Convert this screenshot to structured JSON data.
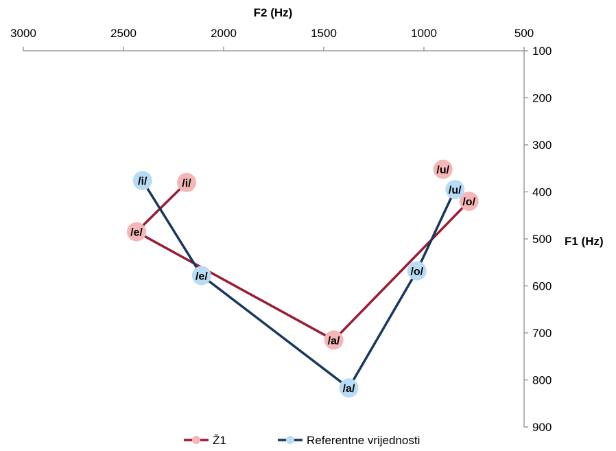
{
  "chart_data": {
    "type": "scatter",
    "title": "",
    "xlabel": "F2 (Hz)",
    "ylabel": "F1 (Hz)",
    "x_axis": {
      "position": "top",
      "reversed": true,
      "min": 500,
      "max": 3000,
      "step": 500
    },
    "y_axis": {
      "position": "right",
      "reversed": true,
      "min": 100,
      "max": 900,
      "step": 100
    },
    "x_tick_labels": [
      "3000",
      "2500",
      "2000",
      "1500",
      "1000",
      "500"
    ],
    "y_tick_labels": [
      "100",
      "200",
      "300",
      "400",
      "500",
      "600",
      "700",
      "800",
      "900"
    ],
    "grid": false,
    "legend_position": "bottom",
    "series": [
      {
        "name": "Ž1",
        "line_color": "#9b1b35",
        "marker_color": "#f4b6b6",
        "points": [
          {
            "label": "/i/",
            "x": 2185,
            "y": 380
          },
          {
            "label": "/e/",
            "x": 2435,
            "y": 485
          },
          {
            "label": "/a/",
            "x": 1450,
            "y": 715
          },
          {
            "label": "/o/",
            "x": 775,
            "y": 420
          }
        ],
        "extra_points": [
          {
            "label": "/u/",
            "x": 905,
            "y": 352
          }
        ]
      },
      {
        "name": "Referentne vrijednosti",
        "line_color": "#17375e",
        "marker_color": "#b9dcf5",
        "points": [
          {
            "label": "/i/",
            "x": 2405,
            "y": 376
          },
          {
            "label": "/e/",
            "x": 2110,
            "y": 578
          },
          {
            "label": "/a/",
            "x": 1375,
            "y": 817
          },
          {
            "label": "/o/",
            "x": 1035,
            "y": 568
          },
          {
            "label": "/u/",
            "x": 845,
            "y": 395
          }
        ]
      }
    ]
  }
}
